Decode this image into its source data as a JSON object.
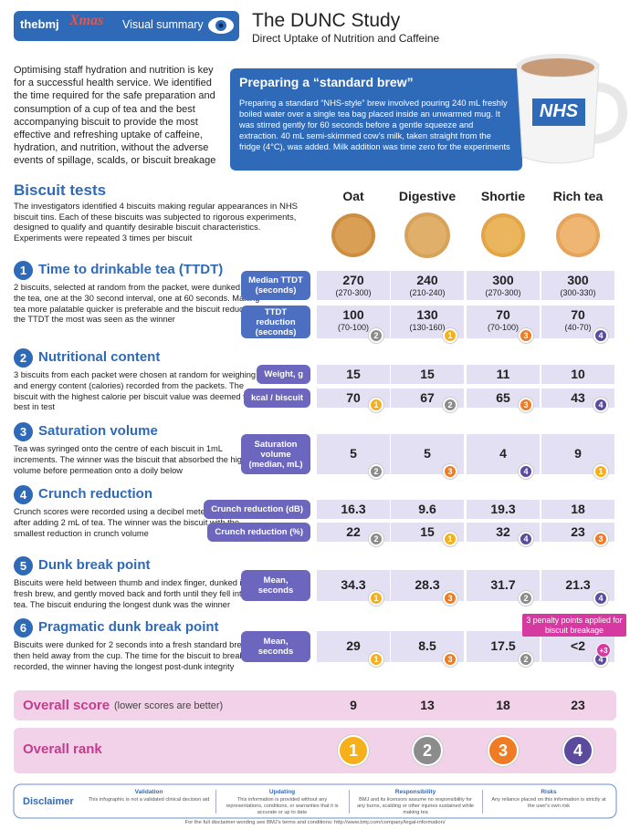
{
  "header": {
    "logo": "thebmj",
    "xmas": "Xmas",
    "visual_summary": "Visual summary",
    "title": "The DUNC Study",
    "subtitle": "Direct Uptake of Nutrition and Caffeine"
  },
  "intro": "Optimising staff hydration and nutrition is key for a successful health service. We identified the time required for the safe preparation and consumption of a cup of tea and the best accompanying biscuit to provide the most effective and refreshing uptake of caffeine, hydration, and nutrition, without the adverse events of spillage, scalds, or biscuit breakage",
  "standard_brew": {
    "title": "Preparing a “standard brew”",
    "text": "Preparing a standard “NHS-style” brew involved pouring 240 mL freshly boiled water over a single tea bag placed inside an unwarmed mug. It was stirred gently for 60 seconds before a gentle squeeze and extraction. 40 mL semi-skimmed cow’s milk, taken straight from the fridge (4°C), was added. Milk addition was time zero for the experiments",
    "mug_label": "NHS"
  },
  "biscuit_tests": {
    "title": "Biscuit tests",
    "text": "The investigators identified 4 biscuits making regular appearances in NHS biscuit tins. Each of these biscuits was subjected to rigorous experiments, designed to qualify and quantify desirable biscuit characteristics. Experiments were repeated 3 times per biscuit",
    "columns": [
      "Oat",
      "Digestive",
      "Shortie",
      "Rich tea"
    ]
  },
  "sections": [
    {
      "number": "1",
      "title": "Time to drinkable tea (TTDT)",
      "text": "2 biscuits, selected at random from the packet, were dunked into the tea, one at the 30 second interval, one at 60 seconds. Making tea more palatable quicker is preferable and the biscuit reducing the TTDT the most was seen as the winner",
      "rows": [
        {
          "label": "Median TTDT (seconds)",
          "values": [
            "270",
            "240",
            "300",
            "300"
          ],
          "ranges": [
            "(270-300)",
            "(210-240)",
            "(270-300)",
            "(300-330)"
          ]
        },
        {
          "label": "TTDT reduction (seconds)",
          "values": [
            "100",
            "130",
            "70",
            "70"
          ],
          "ranges": [
            "(70-100)",
            "(130-160)",
            "(70-100)",
            "(40-70)"
          ]
        }
      ],
      "ranks": [
        2,
        1,
        3,
        4
      ]
    },
    {
      "number": "2",
      "title": "Nutritional content",
      "text": "3 biscuits from each packet were chosen at random for weighing, and energy content (calories) recorded from the packets. The biscuit with the highest calorie per biscuit value was deemed the best in test",
      "rows": [
        {
          "label": "Weight, g",
          "values": [
            "15",
            "15",
            "11",
            "10"
          ]
        },
        {
          "label": "kcal / biscuit",
          "values": [
            "70",
            "67",
            "65",
            "43"
          ]
        }
      ],
      "ranks": [
        1,
        2,
        3,
        4
      ]
    },
    {
      "number": "3",
      "title": "Saturation volume",
      "text": "Tea was syringed onto the centre of each biscuit in 1mL increments. The winner was the biscuit that absorbed the highest volume before permeation onto a doily below",
      "rows": [
        {
          "label": "Saturation volume (median, mL)",
          "values": [
            "5",
            "5",
            "4",
            "9"
          ]
        }
      ],
      "ranks": [
        2,
        3,
        4,
        1
      ]
    },
    {
      "number": "4",
      "title": "Crunch reduction",
      "text": "Crunch scores were recorded using a decibel meter before and after adding 2 mL of tea. The winner was the biscuit with the smallest reduction in crunch volume",
      "rows": [
        {
          "label": "Crunch reduction (dB)",
          "values": [
            "16.3",
            "9.6",
            "19.3",
            "18"
          ]
        },
        {
          "label": "Crunch reduction (%)",
          "values": [
            "22",
            "15",
            "32",
            "23"
          ]
        }
      ],
      "ranks": [
        2,
        1,
        4,
        3
      ]
    },
    {
      "number": "5",
      "title": "Dunk break point",
      "text": "Biscuits were held between thumb and index finger, dunked into a fresh brew, and gently moved back and forth until they fell into the tea. The biscuit enduring the longest dunk was the winner",
      "rows": [
        {
          "label": "Mean, seconds",
          "values": [
            "34.3",
            "28.3",
            "31.7",
            "21.3"
          ]
        }
      ],
      "ranks": [
        1,
        3,
        2,
        4
      ]
    },
    {
      "number": "6",
      "title": "Pragmatic dunk break point",
      "text": "Biscuits were dunked for 2 seconds into a fresh standard brew, then held away from the cup. The time for the biscuit to break was recorded, the winner having the longest post-dunk integrity",
      "rows": [
        {
          "label": "Mean, seconds",
          "values": [
            "29",
            "8.5",
            "17.5",
            "<2"
          ]
        }
      ],
      "ranks": [
        1,
        3,
        2,
        4
      ]
    }
  ],
  "annotation": {
    "text": "3 penalty points applied for biscuit breakage",
    "penalty": "+3"
  },
  "overall_score": {
    "label": "Overall score",
    "note": "(lower scores are better)",
    "values": [
      "9",
      "13",
      "18",
      "23"
    ]
  },
  "overall_rank": {
    "label": "Overall rank",
    "values": [
      1,
      2,
      3,
      4
    ]
  },
  "footer": {
    "disclaimer": "Disclaimer",
    "items": [
      {
        "title": "Validation",
        "text": "This infographic is not a validated clinical decision aid"
      },
      {
        "title": "Updating",
        "text": "This information is provided without any representations, conditions, or warranties that it is accurate or up to date"
      },
      {
        "title": "Responsibility",
        "text": "BMJ and its licensors assume no responsibility for any burns, scalding or other injuries sustained while making tea"
      },
      {
        "title": "Risks",
        "text": "Any reliance placed on this information is strictly at the user's own risk"
      }
    ],
    "note": "For the full disclaimer wording see BMJ's terms and conditions: http://www.bmj.com/company/legal-information/"
  }
}
